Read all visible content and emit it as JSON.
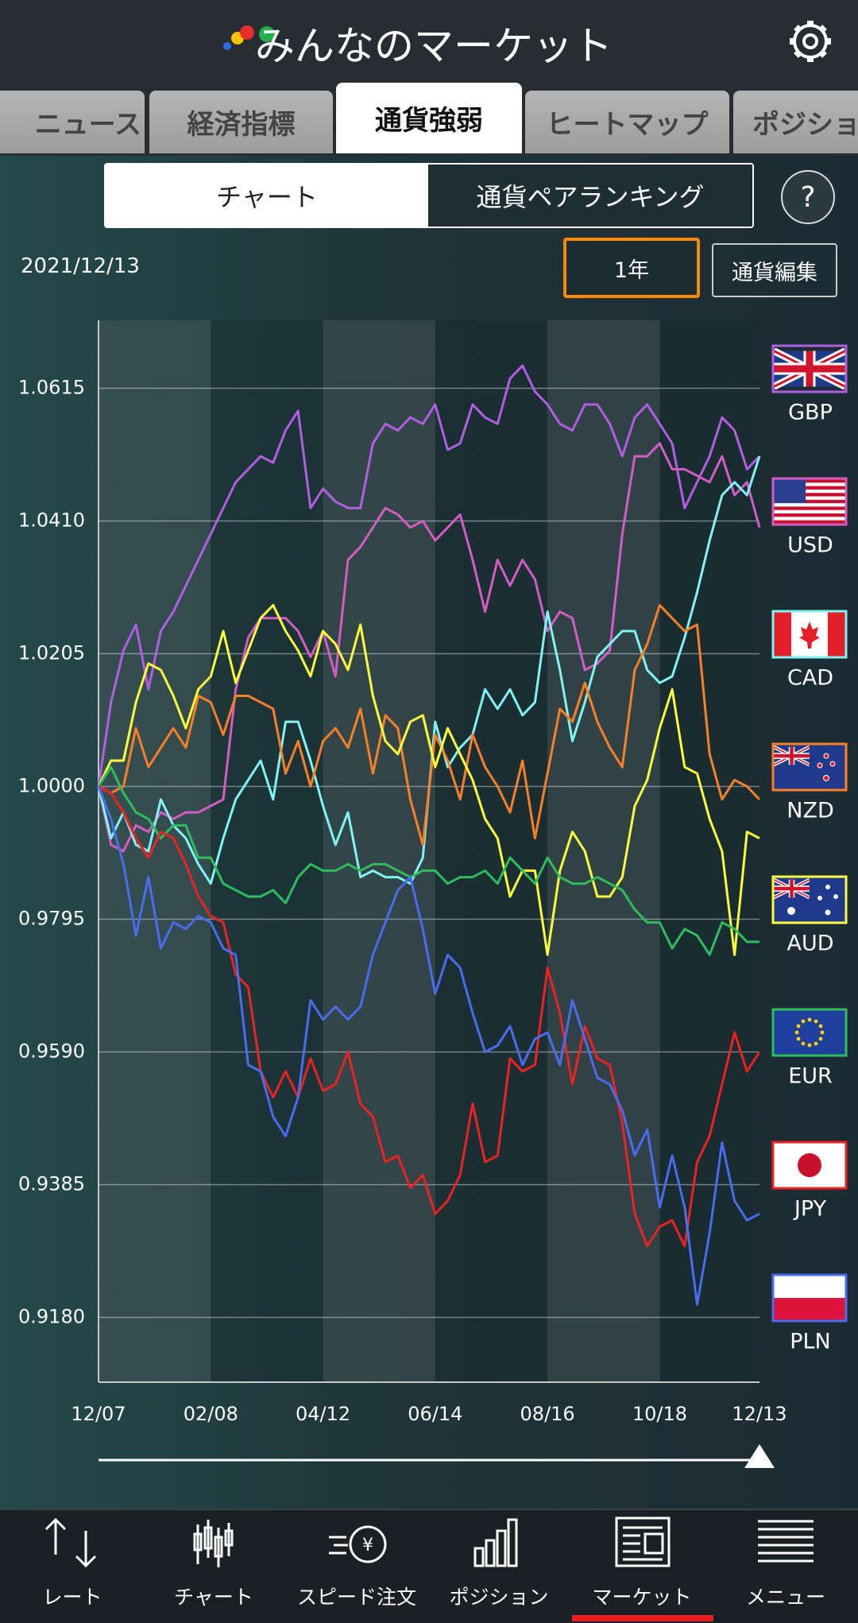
{
  "header": {
    "title": "みんなのマーケット"
  },
  "tabs": [
    "ニュース",
    "経済指標",
    "通貨強弱",
    "ヒートマップ",
    "ポジション"
  ],
  "subtabs": [
    "チャート",
    "通貨ペアランキング"
  ],
  "help": "?",
  "date": "2021/12/13",
  "period": "1年",
  "edit_button": "通貨編集",
  "chart_data": {
    "type": "line",
    "categories": [
      "12/07",
      null,
      null,
      null,
      null,
      null,
      null,
      null,
      null,
      "02/08",
      null,
      null,
      null,
      null,
      null,
      null,
      null,
      null,
      "04/12",
      null,
      null,
      null,
      null,
      null,
      null,
      null,
      null,
      "06/14",
      null,
      null,
      null,
      null,
      null,
      null,
      null,
      null,
      "08/16",
      null,
      null,
      null,
      null,
      null,
      null,
      null,
      null,
      "10/18",
      null,
      null,
      null,
      null,
      null,
      null,
      null,
      "12/13"
    ],
    "ylim": [
      0.908,
      1.072
    ],
    "yticks": [
      {
        "value": 0.918,
        "label": "0.9180"
      },
      0.9385,
      {
        "value": 0.959,
        "label": "0.9590"
      },
      0.9795,
      {
        "value": 1,
        "label": "1.0000"
      },
      1.0205,
      {
        "value": 1.041,
        "label": "1.0410"
      },
      1.0615
    ],
    "grid": true,
    "legend": "right",
    "series": [
      {
        "name": "GBP",
        "color": "#b25ee2",
        "values": [
          1.0,
          1.013,
          1.021,
          1.025,
          1.015,
          1.024,
          1.027,
          1.031,
          1.035,
          1.039,
          1.043,
          1.047,
          1.049,
          1.051,
          1.05,
          1.055,
          1.058,
          1.043,
          1.046,
          1.044,
          1.043,
          1.043,
          1.053,
          1.056,
          1.055,
          1.057,
          1.056,
          1.059,
          1.052,
          1.053,
          1.059,
          1.057,
          1.056,
          1.063,
          1.065,
          1.061,
          1.059,
          1.056,
          1.055,
          1.059,
          1.059,
          1.056,
          1.051,
          1.057,
          1.059,
          1.056,
          1.053,
          1.043,
          1.047,
          1.051,
          1.057,
          1.055,
          1.049,
          1.051
        ]
      },
      {
        "name": "USD",
        "color": "#d45cc2",
        "values": [
          1.0,
          0.991,
          0.99,
          0.994,
          0.993,
          0.996,
          0.995,
          0.996,
          0.996,
          0.997,
          0.998,
          1.015,
          1.023,
          1.026,
          1.026,
          1.026,
          1.024,
          1.02,
          1.024,
          1.017,
          1.035,
          1.037,
          1.04,
          1.043,
          1.042,
          1.04,
          1.041,
          1.038,
          1.04,
          1.042,
          1.035,
          1.027,
          1.035,
          1.031,
          1.035,
          1.032,
          1.024,
          1.027,
          1.026,
          1.018,
          1.019,
          1.021,
          1.039,
          1.051,
          1.051,
          1.053,
          1.049,
          1.049,
          1.048,
          1.047,
          1.051,
          1.045,
          1.047,
          1.04
        ]
      },
      {
        "name": "CAD",
        "color": "#80f4f2",
        "values": [
          1.0,
          0.992,
          0.996,
          0.991,
          0.99,
          0.998,
          0.994,
          0.992,
          0.988,
          0.985,
          0.992,
          0.998,
          1.001,
          1.004,
          0.998,
          1.01,
          1.01,
          1.004,
          0.997,
          0.991,
          0.996,
          0.986,
          0.987,
          0.986,
          0.986,
          0.985,
          0.989,
          1.01,
          1.003,
          1.006,
          1.008,
          1.015,
          1.012,
          1.015,
          1.011,
          1.013,
          1.027,
          1.018,
          1.007,
          1.013,
          1.02,
          1.022,
          1.024,
          1.024,
          1.018,
          1.016,
          1.017,
          1.023,
          1.03,
          1.038,
          1.045,
          1.047,
          1.045,
          1.051
        ]
      },
      {
        "name": "NZD",
        "color": "#ff7f27",
        "values": [
          1.0,
          0.999,
          1.0,
          1.009,
          1.003,
          1.006,
          1.009,
          1.006,
          1.014,
          1.013,
          1.008,
          1.014,
          1.014,
          1.013,
          1.012,
          1.002,
          1.007,
          1.0,
          1.007,
          1.009,
          1.006,
          1.012,
          1.002,
          1.011,
          1.009,
          0.998,
          0.991,
          1.008,
          1.004,
          0.998,
          1.008,
          1.003,
          1.0,
          0.996,
          1.004,
          0.992,
          1.002,
          1.012,
          1.01,
          1.016,
          1.01,
          1.006,
          1.003,
          1.018,
          1.022,
          1.028,
          1.026,
          1.024,
          1.025,
          1.005,
          0.998,
          1.001,
          1.0,
          0.998
        ]
      },
      {
        "name": "AUD",
        "color": "#ffff3a",
        "values": [
          1.0,
          1.004,
          1.004,
          1.013,
          1.019,
          1.018,
          1.014,
          1.009,
          1.015,
          1.017,
          1.024,
          1.016,
          1.021,
          1.026,
          1.028,
          1.024,
          1.021,
          1.017,
          1.024,
          1.022,
          1.018,
          1.025,
          1.014,
          1.007,
          1.005,
          1.01,
          1.011,
          1.003,
          1.009,
          1.005,
          1.001,
          0.995,
          0.992,
          0.983,
          0.987,
          0.987,
          0.974,
          0.987,
          0.993,
          0.99,
          0.983,
          0.983,
          0.986,
          0.997,
          1.001,
          1.009,
          1.015,
          1.003,
          1.002,
          0.995,
          0.99,
          0.974,
          0.993,
          0.992
        ]
      },
      {
        "name": "EUR",
        "color": "#2fbc5c",
        "values": [
          1.0,
          1.003,
          0.999,
          0.996,
          0.995,
          0.992,
          0.994,
          0.994,
          0.989,
          0.989,
          0.985,
          0.984,
          0.983,
          0.983,
          0.984,
          0.982,
          0.986,
          0.988,
          0.987,
          0.987,
          0.988,
          0.987,
          0.988,
          0.988,
          0.987,
          0.986,
          0.987,
          0.987,
          0.985,
          0.986,
          0.986,
          0.987,
          0.985,
          0.989,
          0.987,
          0.985,
          0.989,
          0.986,
          0.985,
          0.985,
          0.986,
          0.985,
          0.984,
          0.981,
          0.979,
          0.979,
          0.975,
          0.978,
          0.977,
          0.974,
          0.979,
          0.978,
          0.976,
          0.976
        ]
      },
      {
        "name": "JPY",
        "color": "#ee2222",
        "values": [
          1.0,
          0.999,
          0.996,
          0.992,
          0.989,
          0.993,
          0.992,
          0.988,
          0.983,
          0.98,
          0.979,
          0.971,
          0.969,
          0.956,
          0.952,
          0.956,
          0.952,
          0.958,
          0.953,
          0.954,
          0.959,
          0.951,
          0.949,
          0.942,
          0.943,
          0.938,
          0.94,
          0.934,
          0.936,
          0.94,
          0.951,
          0.942,
          0.943,
          0.958,
          0.956,
          0.957,
          0.972,
          0.965,
          0.954,
          0.963,
          0.958,
          0.957,
          0.948,
          0.934,
          0.929,
          0.932,
          0.933,
          0.929,
          0.942,
          0.946,
          0.954,
          0.962,
          0.956,
          0.959
        ]
      },
      {
        "name": "PLN",
        "color": "#4a6cf0",
        "values": [
          1.0,
          0.995,
          0.988,
          0.977,
          0.986,
          0.975,
          0.979,
          0.978,
          0.98,
          0.979,
          0.975,
          0.974,
          0.957,
          0.956,
          0.949,
          0.946,
          0.952,
          0.967,
          0.964,
          0.966,
          0.964,
          0.966,
          0.974,
          0.979,
          0.984,
          0.986,
          0.978,
          0.968,
          0.974,
          0.972,
          0.965,
          0.959,
          0.96,
          0.963,
          0.957,
          0.961,
          0.962,
          0.957,
          0.967,
          0.961,
          0.955,
          0.954,
          0.95,
          0.943,
          0.947,
          0.935,
          0.943,
          0.935,
          0.92,
          0.931,
          0.945,
          0.936,
          0.933,
          0.934
        ]
      }
    ]
  },
  "nav": [
    "レート",
    "チャート",
    "スピード注文",
    "ポジション",
    "マーケット",
    "メニュー"
  ]
}
